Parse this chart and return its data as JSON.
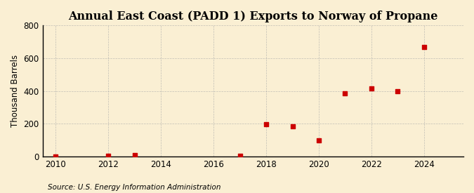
{
  "title": "Annual East Coast (PADD 1) Exports to Norway of Propane",
  "ylabel": "Thousand Barrels",
  "source": "Source: U.S. Energy Information Administration",
  "background_color": "#faefd3",
  "plot_background_color": "#faefd3",
  "grid_color": "#aaaaaa",
  "data": [
    {
      "year": 2010,
      "value": 0
    },
    {
      "year": 2012,
      "value": 2
    },
    {
      "year": 2013,
      "value": 10
    },
    {
      "year": 2017,
      "value": 5
    },
    {
      "year": 2018,
      "value": 197
    },
    {
      "year": 2019,
      "value": 183
    },
    {
      "year": 2020,
      "value": 100
    },
    {
      "year": 2021,
      "value": 385
    },
    {
      "year": 2022,
      "value": 415
    },
    {
      "year": 2023,
      "value": 400
    },
    {
      "year": 2024,
      "value": 670
    }
  ],
  "marker_color": "#cc0000",
  "marker_size": 18,
  "xlim": [
    2009.5,
    2025.5
  ],
  "ylim": [
    0,
    800
  ],
  "yticks": [
    0,
    200,
    400,
    600,
    800
  ],
  "xticks": [
    2010,
    2012,
    2014,
    2016,
    2018,
    2020,
    2022,
    2024
  ],
  "title_fontsize": 11.5,
  "axis_fontsize": 8.5,
  "source_fontsize": 7.5
}
